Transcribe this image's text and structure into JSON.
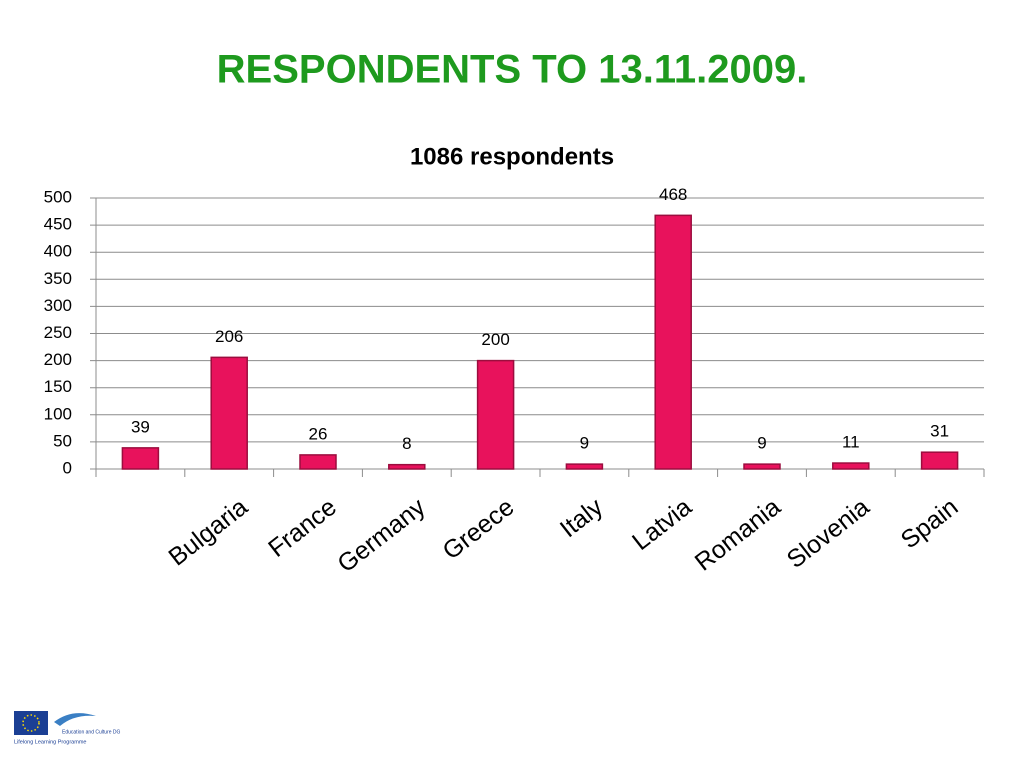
{
  "slide_title": "RESPONDENTS TO 13.11.2009.",
  "chart_data": {
    "type": "bar",
    "title": "1086 respondents",
    "categories": [
      null,
      "Bulgaria",
      "France",
      "Germany",
      "Greece",
      "Italy",
      "Latvia",
      "Romania",
      "Slovenia",
      "Spain"
    ],
    "values": [
      39,
      206,
      26,
      8,
      200,
      9,
      468,
      9,
      11,
      31
    ],
    "color": "#e8125c",
    "ylim": [
      0,
      500
    ],
    "yticks": [
      0,
      50,
      100,
      150,
      200,
      250,
      300,
      350,
      400,
      450,
      500
    ],
    "grid": true
  },
  "logo": {
    "dg": "Education and Culture DG",
    "programme": "Lifelong Learning Programme"
  }
}
